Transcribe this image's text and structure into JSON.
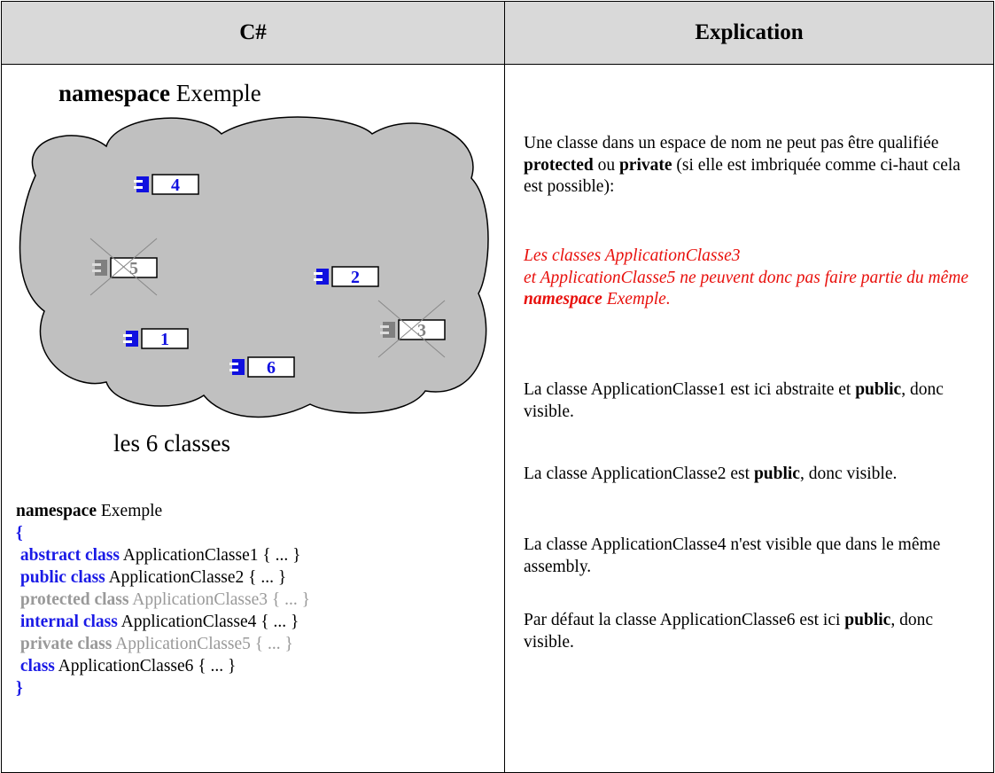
{
  "table": {
    "headers": [
      "C#",
      "Explication"
    ],
    "diagram": {
      "title": [
        {
          "text": "namespace",
          "style": "bold"
        },
        {
          "text": " Exemple",
          "style": "plain"
        }
      ],
      "classes": [
        {
          "label": "1",
          "visible": true
        },
        {
          "label": "2",
          "visible": true
        },
        {
          "label": "3",
          "visible": false
        },
        {
          "label": "4",
          "visible": true
        },
        {
          "label": "5",
          "visible": false
        },
        {
          "label": "6",
          "visible": true
        }
      ],
      "caption": "les 6 classes"
    },
    "code": [
      [
        {
          "text": "namespace",
          "style": "bold"
        },
        {
          "text": " Exemple",
          "style": "plain"
        }
      ],
      [
        {
          "text": "{",
          "style": "keyword"
        }
      ],
      [
        {
          "text": " abstract class",
          "style": "keyword"
        },
        {
          "text": " ApplicationClasse1 { ... }",
          "style": "plain"
        }
      ],
      [
        {
          "text": " public class",
          "style": "keyword"
        },
        {
          "text": " ApplicationClasse2 { ... }",
          "style": "plain"
        }
      ],
      [
        {
          "text": " protected class",
          "style": "muted-bold"
        },
        {
          "text": " ApplicationClasse3 { ... }",
          "style": "muted"
        }
      ],
      [
        {
          "text": " internal class",
          "style": "keyword"
        },
        {
          "text": " ApplicationClasse4 { ... }",
          "style": "plain"
        }
      ],
      [
        {
          "text": " private class",
          "style": "muted-bold"
        },
        {
          "text": " ApplicationClasse5 { ... }",
          "style": "muted"
        }
      ],
      [
        {
          "text": " class",
          "style": "keyword"
        },
        {
          "text": " ApplicationClasse6 { ... }",
          "style": "plain"
        }
      ],
      [
        {
          "text": "}",
          "style": "keyword"
        }
      ]
    ],
    "explication": [
      {
        "lines": [
          [
            {
              "text": "Une classe dans un espace de nom ne peut pas être qualifiée ",
              "style": "plain"
            },
            {
              "text": "protected",
              "style": "bold"
            },
            {
              "text": " ou ",
              "style": "plain"
            },
            {
              "text": "private",
              "style": "bold"
            },
            {
              "text": " (si elle est imbriquée comme ci-haut cela est possible):",
              "style": "plain"
            }
          ]
        ]
      },
      {
        "lines": [
          [
            {
              "text": "Les classes ApplicationClasse3",
              "style": "note"
            }
          ],
          [
            {
              "text": "et ApplicationClasse5 ne peuvent donc pas faire partie du même ",
              "style": "note"
            },
            {
              "text": "namespace",
              "style": "note-bold"
            },
            {
              "text": " Exemple.",
              "style": "note"
            }
          ]
        ]
      },
      {
        "lines": [
          [
            {
              "text": "La classe ApplicationClasse1 est ici abstraite et ",
              "style": "plain"
            },
            {
              "text": "public",
              "style": "bold"
            },
            {
              "text": ", donc visible.",
              "style": "plain"
            }
          ]
        ]
      },
      {
        "lines": [
          [
            {
              "text": "La classe ApplicationClasse2 est  ",
              "style": "plain"
            },
            {
              "text": "public",
              "style": "bold"
            },
            {
              "text": ", donc visible.",
              "style": "plain"
            }
          ]
        ]
      },
      {
        "lines": [
          [
            {
              "text": "La classe ApplicationClasse4 n'est visible que dans le même assembly.",
              "style": "plain"
            }
          ]
        ]
      },
      {
        "lines": [
          [
            {
              "text": "Par défaut la classe ApplicationClasse6 est ici ",
              "style": "plain"
            },
            {
              "text": "public",
              "style": "bold"
            },
            {
              "text": ", donc visible.",
              "style": "plain"
            }
          ]
        ]
      }
    ]
  }
}
